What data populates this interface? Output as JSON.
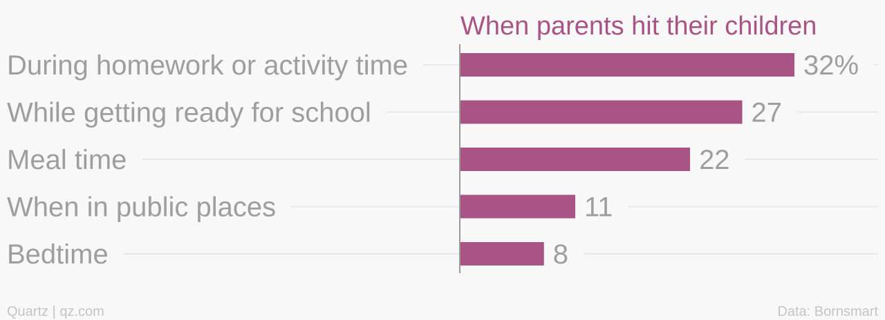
{
  "chart_data": {
    "type": "bar",
    "orientation": "horizontal",
    "title": "When parents hit their children",
    "categories": [
      "During homework or activity time",
      "While getting ready for school",
      "Meal time",
      "When in public places",
      "Bedtime"
    ],
    "values": [
      32,
      27,
      22,
      11,
      8
    ],
    "value_labels": [
      "32%",
      "27",
      "22",
      "11",
      "8"
    ],
    "unit": "%",
    "xlim": [
      0,
      40
    ],
    "grid": false,
    "legend": "none"
  },
  "footer": {
    "source_left": "Quartz | qz.com",
    "source_right": "Data: Bornsmart"
  },
  "colors": {
    "bar": "#a85585",
    "title": "#a85585",
    "label": "#9e9e9e",
    "guide_line": "#e8e8e8",
    "axis_line": "#7a7a7a",
    "footer": "#c4c4c4",
    "background": "#f8f8f8"
  }
}
